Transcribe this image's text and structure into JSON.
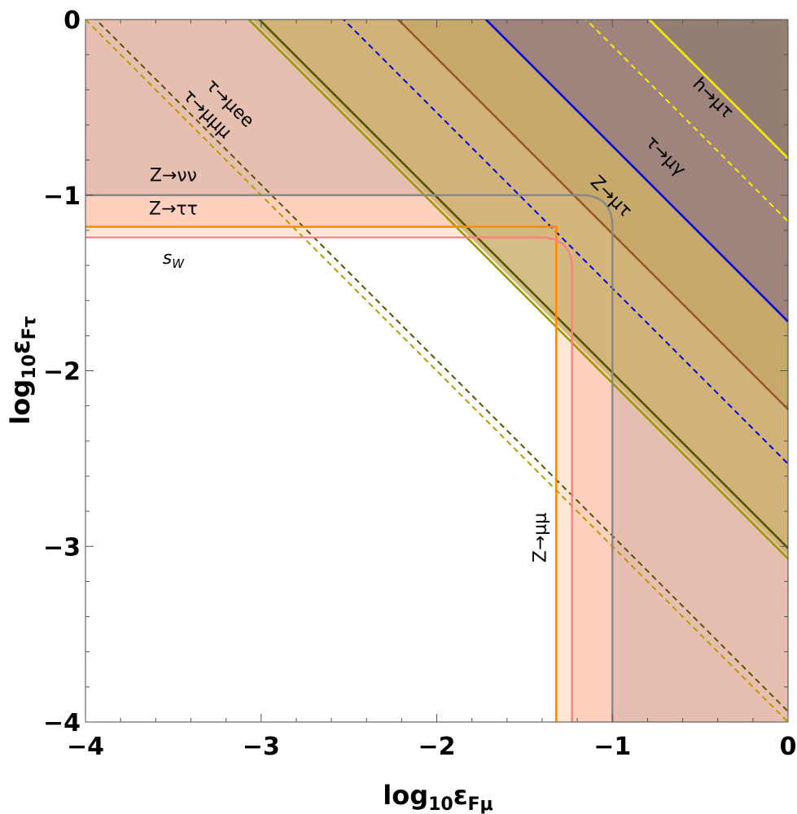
{
  "chart_data": {
    "type": "line",
    "xlabel": {
      "base": "log",
      "sub": "10",
      "sym": "ε",
      "sub2": "Fμ"
    },
    "ylabel": {
      "base": "log",
      "sub": "10",
      "sym": "ε",
      "sub2": "Fτ"
    },
    "xlim": [
      -4,
      0
    ],
    "ylim": [
      -4,
      0
    ],
    "x_ticks": [
      -4,
      -3,
      -2,
      -1,
      0
    ],
    "y_ticks": [
      -4,
      -3,
      -2,
      -1,
      0
    ],
    "x_tick_labels": [
      "−4",
      "−3",
      "−2",
      "−1",
      "0"
    ],
    "y_tick_labels": [
      "−4",
      "−3",
      "−2",
      "−1",
      "0"
    ],
    "grid": false,
    "regions": [
      {
        "name": "h→μτ",
        "boundary": "x + y > -1.0",
        "color": "#8a7a6a"
      },
      {
        "name": "τ→μγ",
        "boundary": "x + y > -1.72",
        "color": "#9a8080"
      },
      {
        "name": "Z→μτ",
        "boundary": "x + y > -2.45",
        "color": "#c0a060"
      },
      {
        "name": "τ→μee",
        "boundary": "x + y > -3.05",
        "color": "#ccb070"
      },
      {
        "name": "Z→νν",
        "boundary": "x > -1.0 or y > -1.0",
        "color": "#e6bfb0"
      },
      {
        "name": "Z→ττ",
        "boundary": "x > -1.32 or y > -1.18",
        "color": "#ffd0bd"
      }
    ],
    "series": [
      {
        "name": "h→μτ",
        "kind": "diagonal",
        "sum": -0.79,
        "color": "#f5ee00",
        "dash": false
      },
      {
        "name": "",
        "kind": "diagonal",
        "sum": -1.15,
        "color": "#f5ee00",
        "dash": true
      },
      {
        "name": "τ→μγ",
        "kind": "diagonal",
        "sum": -1.72,
        "color": "#0000dd",
        "dash": false
      },
      {
        "name": "",
        "kind": "diagonal",
        "sum": -2.53,
        "color": "#0000dd",
        "dash": true
      },
      {
        "name": "Z→μτ",
        "kind": "diagonal",
        "sum": -2.22,
        "color": "#9a5a28",
        "dash": false
      },
      {
        "name": "τ→μμμ",
        "kind": "diagonal",
        "sum": -3.01,
        "color": "#555500",
        "dash": false
      },
      {
        "name": "τ→μee",
        "kind": "diagonal",
        "sum": -3.07,
        "color": "#999900",
        "dash": false
      },
      {
        "name": "",
        "kind": "diagonal",
        "sum": -3.94,
        "color": "#555500",
        "dash": true
      },
      {
        "name": "",
        "kind": "diagonal",
        "sum": -4.0,
        "color": "#b39b00",
        "dash": true
      },
      {
        "name": "Z→νν",
        "kind": "corner",
        "x0": -1.0,
        "y0": -1.0,
        "color": "#888888"
      },
      {
        "name": "Z→ττ",
        "kind": "box",
        "x0": -1.32,
        "y0": -1.18,
        "color": "#ff8c00"
      },
      {
        "name": "Z→μμ",
        "kind": "box",
        "x0": -1.32,
        "y0": -1.18,
        "color": "#ff8c00"
      },
      {
        "name": "s_W",
        "kind": "corner",
        "x0": -1.23,
        "y0": -1.24,
        "color": "#ff8080"
      }
    ],
    "annotations": [
      {
        "id": "h_mutau",
        "text": "h→μτ",
        "x": -0.45,
        "y": -0.47,
        "rotate": 45
      },
      {
        "id": "tau_mugamma",
        "text": "τ→μγ",
        "x": -0.72,
        "y": -0.8,
        "rotate": 45
      },
      {
        "id": "z_mutau",
        "text": "Z→μτ",
        "x": -1.03,
        "y": -1.03,
        "rotate": 45
      },
      {
        "id": "tau_muee",
        "text": "τ→μee",
        "x": -3.2,
        "y": -0.5,
        "rotate": 45
      },
      {
        "id": "tau_mumumu",
        "text": "τ→μμμ",
        "x": -3.33,
        "y": -0.56,
        "rotate": 45
      },
      {
        "id": "z_nunu",
        "text": "Z→νν",
        "x": -3.5,
        "y": -0.92,
        "rotate": 0
      },
      {
        "id": "z_tautau",
        "text": "Z→ττ",
        "x": -3.5,
        "y": -1.11,
        "rotate": 0
      },
      {
        "id": "s_w",
        "text": "s",
        "sub": "W",
        "x": -3.5,
        "y": -1.39,
        "rotate": 0
      },
      {
        "id": "z_mumu",
        "text": "Z→μμ",
        "x": -1.38,
        "y": -2.95,
        "rotate": -90
      }
    ]
  }
}
